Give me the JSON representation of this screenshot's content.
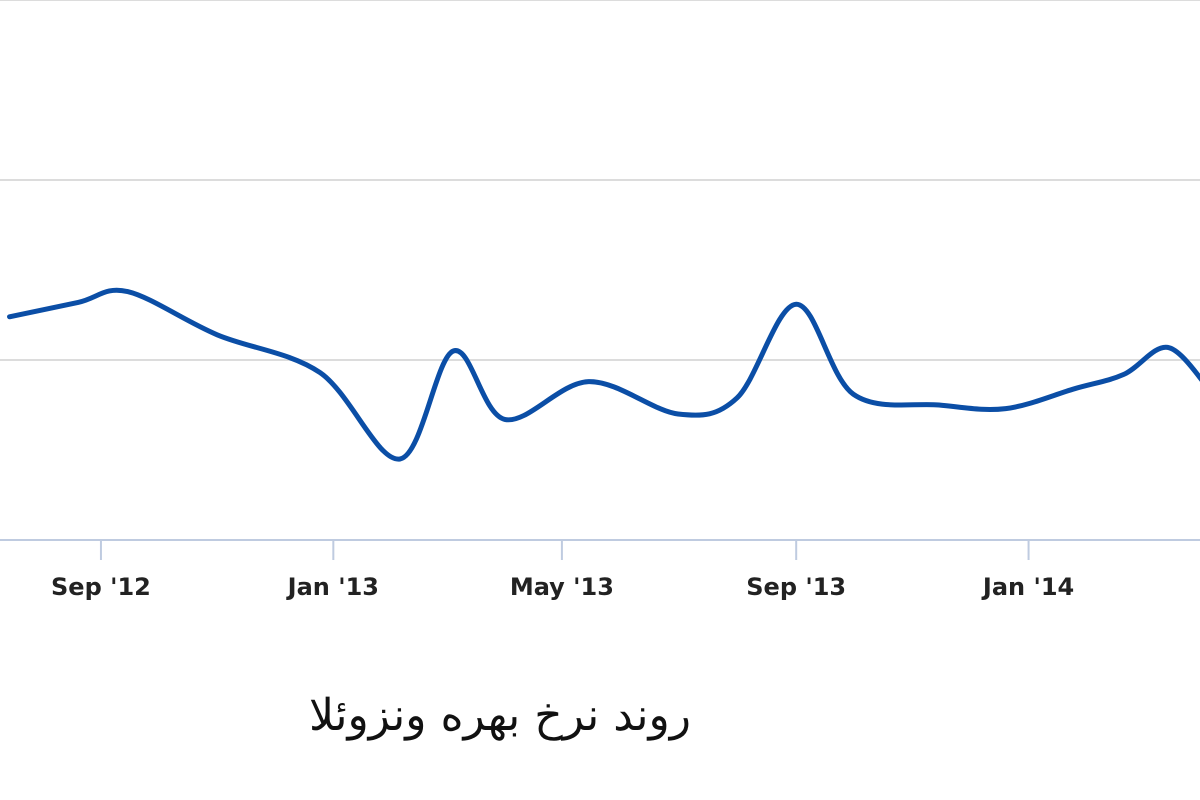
{
  "chart_data": {
    "type": "line",
    "caption": "روند نرخ بهره ونزوئلا",
    "x_tick_labels": [
      "Sep '12",
      "Jan '13",
      "May '13",
      "Sep '13",
      "Jan '14"
    ],
    "x": [
      "2012-07-15",
      "2012-08-20",
      "2012-09-15",
      "2012-11-01",
      "2012-12-25",
      "2013-02-05",
      "2013-03-05",
      "2013-04-01",
      "2013-05-15",
      "2013-07-01",
      "2013-08-01",
      "2013-09-01",
      "2013-10-01",
      "2013-11-15",
      "2013-12-20",
      "2014-01-25",
      "2014-02-20",
      "2014-03-15",
      "2014-04-05"
    ],
    "series": [
      {
        "values": [
          1.24,
          1.32,
          1.38,
          1.14,
          0.93,
          0.45,
          1.05,
          0.67,
          0.88,
          0.7,
          0.79,
          1.31,
          0.81,
          0.75,
          0.73,
          0.84,
          0.92,
          1.07,
          0.85
        ],
        "color": "#0b4ea6"
      }
    ],
    "xlim": [
      "2012-07-10",
      "2014-04-01"
    ],
    "ylim": [
      0,
      3
    ],
    "grid": true,
    "gridline_values": [
      1,
      2,
      3
    ],
    "legend": "none"
  }
}
